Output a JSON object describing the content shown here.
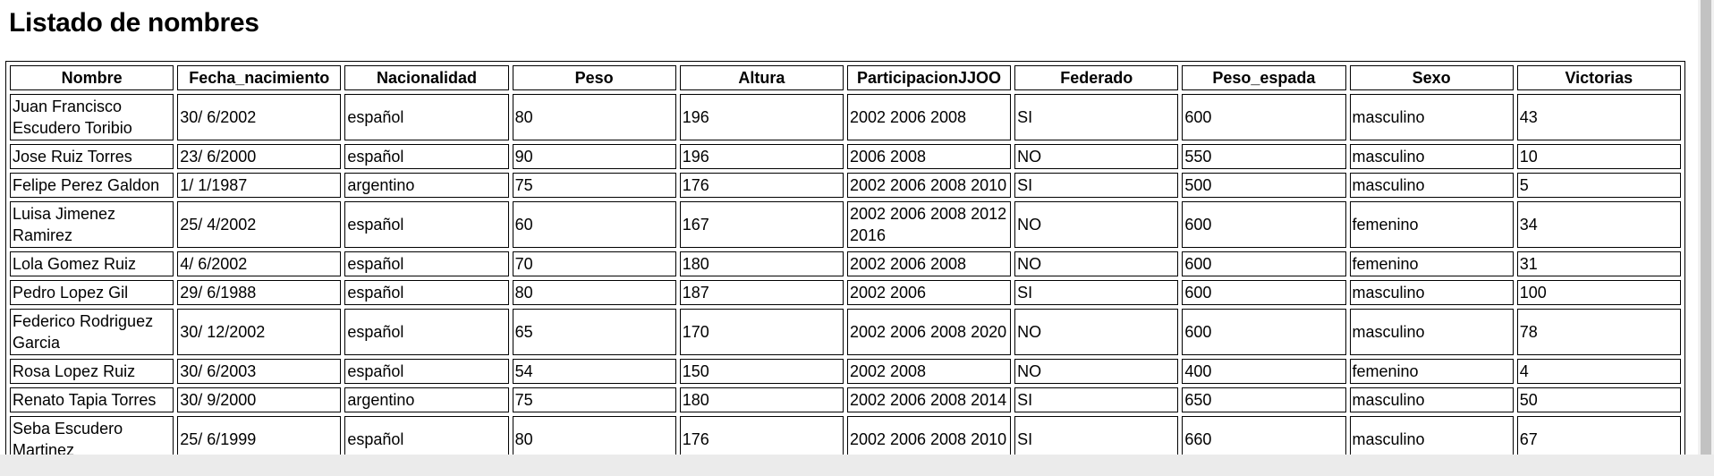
{
  "page": {
    "title": "Listado de nombres"
  },
  "table": {
    "headers": [
      "Nombre",
      "Fecha_nacimiento",
      "Nacionalidad",
      "Peso",
      "Altura",
      "ParticipacionJJOO",
      "Federado",
      "Peso_espada",
      "Sexo",
      "Victorias"
    ],
    "rows": [
      [
        "Juan Francisco Escudero Toribio",
        "30/ 6/2002",
        "español",
        "80",
        "196",
        "2002 2006 2008",
        "SI",
        "600",
        "masculino",
        "43"
      ],
      [
        "Jose Ruiz Torres",
        "23/ 6/2000",
        "español",
        "90",
        "196",
        "2006 2008",
        "NO",
        "550",
        "masculino",
        "10"
      ],
      [
        "Felipe Perez Galdon",
        "1/ 1/1987",
        "argentino",
        "75",
        "176",
        "2002 2006 2008 2010",
        "SI",
        "500",
        "masculino",
        "5"
      ],
      [
        "Luisa Jimenez Ramirez",
        "25/ 4/2002",
        "español",
        "60",
        "167",
        "2002 2006 2008 2012 2016",
        "NO",
        "600",
        "femenino",
        "34"
      ],
      [
        "Lola Gomez Ruiz",
        "4/ 6/2002",
        "español",
        "70",
        "180",
        "2002 2006 2008",
        "NO",
        "600",
        "femenino",
        "31"
      ],
      [
        "Pedro Lopez Gil",
        "29/ 6/1988",
        "español",
        "80",
        "187",
        "2002 2006",
        "SI",
        "600",
        "masculino",
        "100"
      ],
      [
        "Federico Rodriguez Garcia",
        "30/ 12/2002",
        "español",
        "65",
        "170",
        "2002 2006 2008 2020",
        "NO",
        "600",
        "masculino",
        "78"
      ],
      [
        "Rosa Lopez Ruiz",
        "30/ 6/2003",
        "español",
        "54",
        "150",
        "2002 2008",
        "NO",
        "400",
        "femenino",
        "4"
      ],
      [
        "Renato Tapia Torres",
        "30/ 9/2000",
        "argentino",
        "75",
        "180",
        "2002 2006 2008 2014",
        "SI",
        "650",
        "masculino",
        "50"
      ],
      [
        "Seba Escudero Martinez",
        "25/ 6/1999",
        "español",
        "80",
        "176",
        "2002 2006 2008 2010",
        "SI",
        "660",
        "masculino",
        "67"
      ]
    ]
  }
}
